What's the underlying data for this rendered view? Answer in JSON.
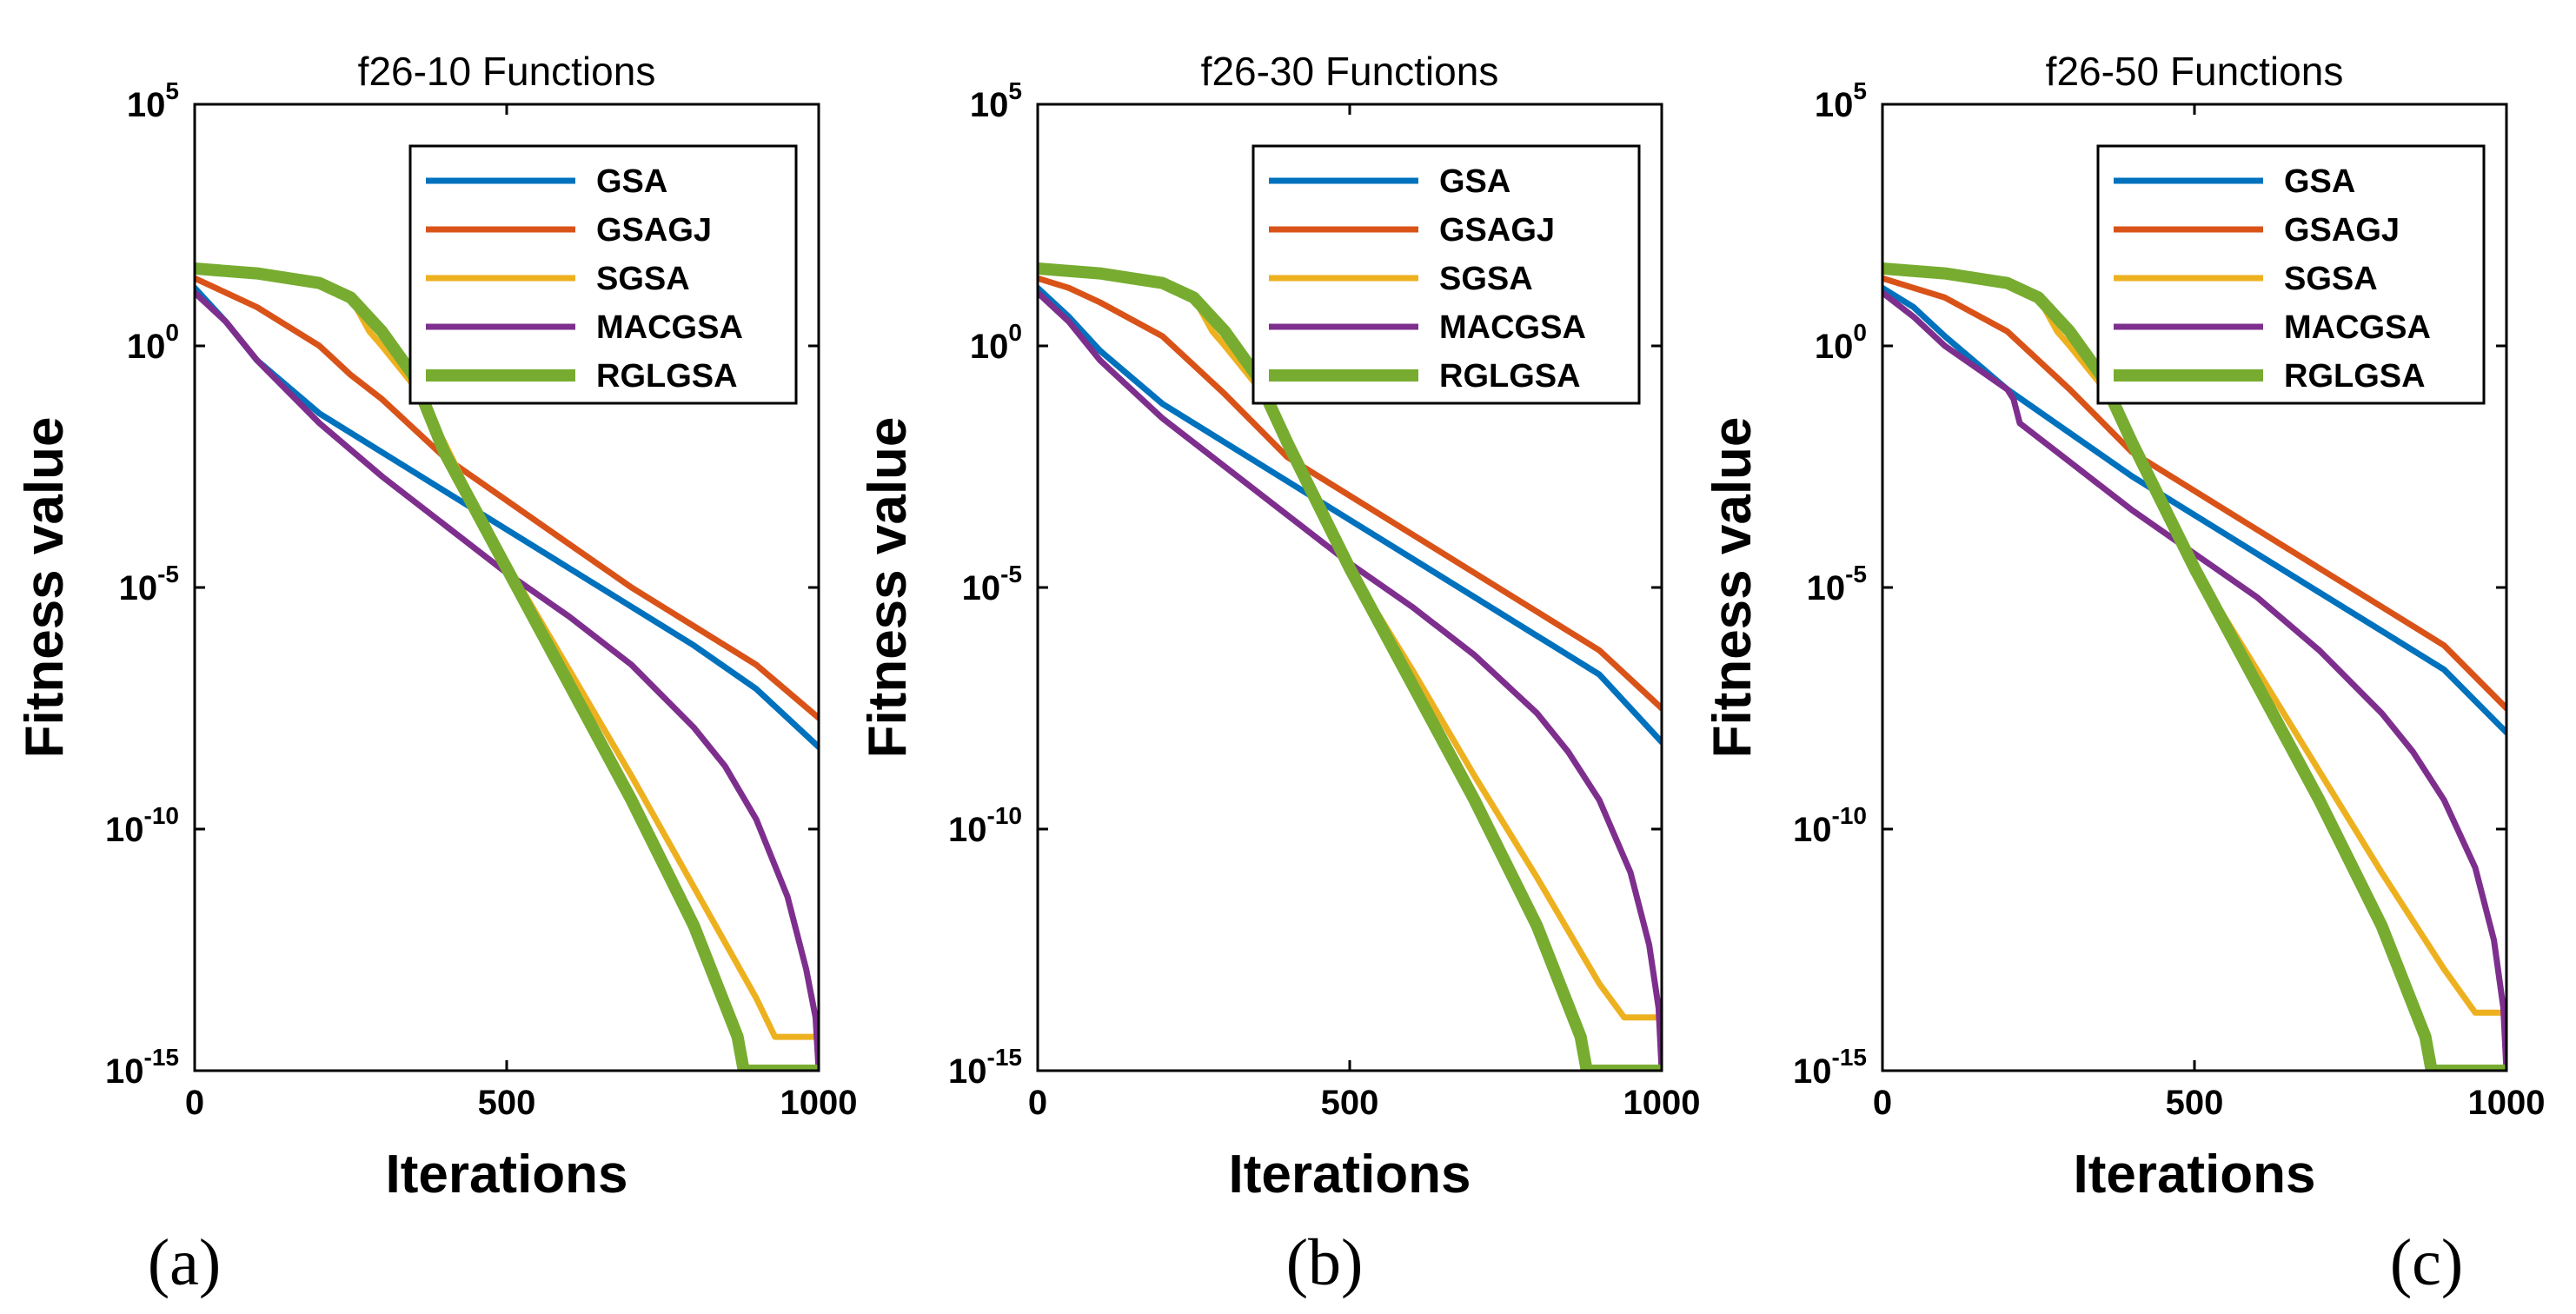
{
  "chart_data": [
    {
      "type": "line",
      "panel_label": "(a)",
      "title": "f26-10 Functions",
      "xlabel": "Iterations",
      "ylabel": "Fitness value",
      "y_scale": "log",
      "xlim": [
        0,
        1000
      ],
      "ylim_exponent": [
        -15,
        5
      ],
      "x_ticks": [
        "0",
        "500",
        "1000"
      ],
      "y_tick_exponents": [
        "5",
        "0",
        "-5",
        "-10",
        "-15"
      ],
      "legend": [
        "GSA",
        "GSAGJ",
        "SGSA",
        "MACGSA",
        "RGLGSA"
      ],
      "legend_position": "top-right",
      "series": [
        {
          "name": "GSA",
          "color": "#0072BD",
          "x": [
            0,
            50,
            100,
            200,
            300,
            400,
            500,
            600,
            700,
            800,
            900,
            1000
          ],
          "log10_y": [
            1.2,
            0.5,
            -0.3,
            -1.4,
            -2.2,
            -3.0,
            -3.8,
            -4.6,
            -5.4,
            -6.2,
            -7.1,
            -8.3
          ]
        },
        {
          "name": "GSAGJ",
          "color": "#D95319",
          "x": [
            0,
            50,
            100,
            200,
            250,
            300,
            400,
            500,
            600,
            700,
            800,
            900,
            1000
          ],
          "log10_y": [
            1.4,
            1.1,
            0.8,
            0.0,
            -0.6,
            -1.1,
            -2.3,
            -3.2,
            -4.1,
            -5.0,
            -5.8,
            -6.6,
            -7.7
          ]
        },
        {
          "name": "SGSA",
          "color": "#EDB120",
          "x": [
            0,
            100,
            200,
            250,
            280,
            300,
            350,
            400,
            450,
            500,
            600,
            700,
            800,
            900,
            930,
            1000
          ],
          "log10_y": [
            1.6,
            1.5,
            1.3,
            1.0,
            0.3,
            0.0,
            -0.8,
            -2.0,
            -3.3,
            -4.5,
            -6.7,
            -8.9,
            -11.2,
            -13.5,
            -14.3,
            -14.3
          ]
        },
        {
          "name": "MACGSA",
          "color": "#7E2F8E",
          "x": [
            0,
            50,
            100,
            200,
            300,
            400,
            500,
            600,
            700,
            800,
            850,
            900,
            950,
            980,
            995,
            1000
          ],
          "log10_y": [
            1.1,
            0.5,
            -0.3,
            -1.6,
            -2.7,
            -3.7,
            -4.7,
            -5.6,
            -6.6,
            -7.9,
            -8.7,
            -9.8,
            -11.4,
            -12.9,
            -13.9,
            -15.0
          ]
        },
        {
          "name": "RGLGSA",
          "color": "#77AC30",
          "x": [
            0,
            100,
            200,
            250,
            300,
            350,
            400,
            450,
            500,
            600,
            700,
            800,
            870,
            880,
            1000
          ],
          "log10_y": [
            1.6,
            1.5,
            1.3,
            1.0,
            0.3,
            -0.6,
            -2.2,
            -3.4,
            -4.6,
            -7.0,
            -9.4,
            -12.0,
            -14.3,
            -15.0,
            -15.0
          ]
        }
      ]
    },
    {
      "type": "line",
      "panel_label": "(b)",
      "title": "f26-30 Functions",
      "xlabel": "Iterations",
      "ylabel": "Fitness value",
      "y_scale": "log",
      "xlim": [
        0,
        1000
      ],
      "ylim_exponent": [
        -15,
        5
      ],
      "x_ticks": [
        "0",
        "500",
        "1000"
      ],
      "y_tick_exponents": [
        "5",
        "0",
        "-5",
        "-10",
        "-15"
      ],
      "legend": [
        "GSA",
        "GSAGJ",
        "SGSA",
        "MACGSA",
        "RGLGSA"
      ],
      "legend_position": "top-right",
      "series": [
        {
          "name": "GSA",
          "color": "#0072BD",
          "x": [
            0,
            50,
            100,
            200,
            300,
            400,
            500,
            600,
            700,
            800,
            900,
            1000
          ],
          "log10_y": [
            1.2,
            0.6,
            -0.1,
            -1.2,
            -2.0,
            -2.8,
            -3.6,
            -4.4,
            -5.2,
            -6.0,
            -6.8,
            -8.2
          ]
        },
        {
          "name": "GSAGJ",
          "color": "#D95319",
          "x": [
            0,
            50,
            100,
            200,
            250,
            300,
            400,
            500,
            600,
            700,
            800,
            900,
            1000
          ],
          "log10_y": [
            1.4,
            1.2,
            0.9,
            0.2,
            -0.4,
            -1.0,
            -2.3,
            -3.1,
            -3.9,
            -4.7,
            -5.5,
            -6.3,
            -7.5
          ]
        },
        {
          "name": "SGSA",
          "color": "#EDB120",
          "x": [
            0,
            100,
            200,
            250,
            280,
            300,
            350,
            400,
            450,
            500,
            600,
            700,
            800,
            900,
            940,
            1000
          ],
          "log10_y": [
            1.6,
            1.5,
            1.3,
            1.0,
            0.3,
            0.0,
            -0.8,
            -2.0,
            -3.3,
            -4.6,
            -6.7,
            -8.9,
            -11.0,
            -13.2,
            -13.9,
            -13.9
          ]
        },
        {
          "name": "MACGSA",
          "color": "#7E2F8E",
          "x": [
            0,
            50,
            100,
            200,
            300,
            400,
            500,
            600,
            700,
            800,
            850,
            900,
            950,
            980,
            995,
            1000
          ],
          "log10_y": [
            1.1,
            0.5,
            -0.3,
            -1.5,
            -2.5,
            -3.5,
            -4.5,
            -5.4,
            -6.4,
            -7.6,
            -8.4,
            -9.4,
            -10.9,
            -12.4,
            -13.7,
            -15.0
          ]
        },
        {
          "name": "RGLGSA",
          "color": "#77AC30",
          "x": [
            0,
            100,
            200,
            250,
            300,
            350,
            400,
            450,
            500,
            600,
            700,
            800,
            870,
            880,
            1000
          ],
          "log10_y": [
            1.6,
            1.5,
            1.3,
            1.0,
            0.3,
            -0.6,
            -2.0,
            -3.3,
            -4.6,
            -7.0,
            -9.4,
            -12.0,
            -14.3,
            -15.0,
            -15.0
          ]
        }
      ]
    },
    {
      "type": "line",
      "panel_label": "(c)",
      "title": "f26-50 Functions",
      "xlabel": "Iterations",
      "ylabel": "Fitness value",
      "y_scale": "log",
      "xlim": [
        0,
        1000
      ],
      "ylim_exponent": [
        -15,
        5
      ],
      "x_ticks": [
        "0",
        "500",
        "1000"
      ],
      "y_tick_exponents": [
        "5",
        "0",
        "-5",
        "-10",
        "-15"
      ],
      "legend": [
        "GSA",
        "GSAGJ",
        "SGSA",
        "MACGSA",
        "RGLGSA"
      ],
      "legend_position": "top-right",
      "series": [
        {
          "name": "GSA",
          "color": "#0072BD",
          "x": [
            0,
            50,
            100,
            200,
            300,
            400,
            500,
            600,
            700,
            800,
            900,
            1000
          ],
          "log10_y": [
            1.2,
            0.8,
            0.2,
            -0.9,
            -1.8,
            -2.7,
            -3.5,
            -4.3,
            -5.1,
            -5.9,
            -6.7,
            -8.0
          ]
        },
        {
          "name": "GSAGJ",
          "color": "#D95319",
          "x": [
            0,
            50,
            100,
            200,
            250,
            300,
            400,
            500,
            600,
            700,
            800,
            900,
            1000
          ],
          "log10_y": [
            1.4,
            1.2,
            1.0,
            0.3,
            -0.3,
            -0.9,
            -2.2,
            -3.0,
            -3.8,
            -4.6,
            -5.4,
            -6.2,
            -7.5
          ]
        },
        {
          "name": "SGSA",
          "color": "#EDB120",
          "x": [
            0,
            100,
            200,
            250,
            280,
            300,
            350,
            400,
            450,
            500,
            600,
            700,
            800,
            900,
            950,
            1000
          ],
          "log10_y": [
            1.6,
            1.5,
            1.3,
            1.0,
            0.3,
            0.0,
            -0.8,
            -2.0,
            -3.3,
            -4.6,
            -6.7,
            -8.8,
            -10.9,
            -12.9,
            -13.8,
            -13.8
          ]
        },
        {
          "name": "MACGSA",
          "color": "#7E2F8E",
          "x": [
            0,
            50,
            100,
            200,
            210,
            220,
            300,
            400,
            500,
            600,
            700,
            800,
            850,
            900,
            950,
            980,
            995,
            1000
          ],
          "log10_y": [
            1.1,
            0.6,
            0.0,
            -0.9,
            -1.1,
            -1.6,
            -2.4,
            -3.4,
            -4.3,
            -5.2,
            -6.3,
            -7.6,
            -8.4,
            -9.4,
            -10.8,
            -12.3,
            -13.7,
            -15.0
          ]
        },
        {
          "name": "RGLGSA",
          "color": "#77AC30",
          "x": [
            0,
            100,
            200,
            250,
            300,
            350,
            400,
            450,
            500,
            600,
            700,
            800,
            870,
            880,
            1000
          ],
          "log10_y": [
            1.6,
            1.5,
            1.3,
            1.0,
            0.3,
            -0.6,
            -2.0,
            -3.3,
            -4.6,
            -7.0,
            -9.4,
            -12.0,
            -14.3,
            -15.0,
            -15.0
          ]
        }
      ]
    }
  ]
}
